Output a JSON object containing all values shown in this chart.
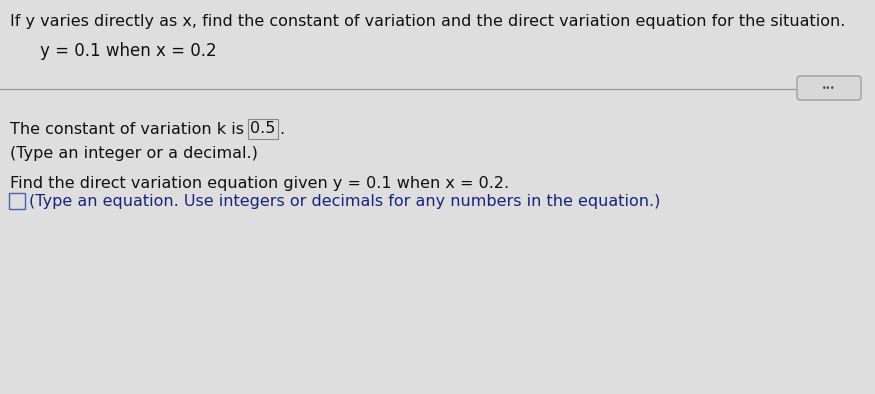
{
  "background_color": "#dedede",
  "text_color": "#111111",
  "blue_color": "#1a237e",
  "title": "If y varies directly as x, find the constant of variation and the direct variation equation for the situation.",
  "subtitle": "y = 0.1 when x = 0.2",
  "line1_pre": "The constant of variation k is ",
  "k_value": "0.5",
  "line1_post": ".",
  "line2": "(Type an integer or a decimal.)",
  "line3": "Find the direct variation equation given y = 0.1 when x = 0.2.",
  "line4": "(Type an equation. Use integers or decimals for any numbers in the equation.)",
  "font_size": 11.5,
  "title_font_size": 11.5,
  "subtitle_font_size": 12.0
}
